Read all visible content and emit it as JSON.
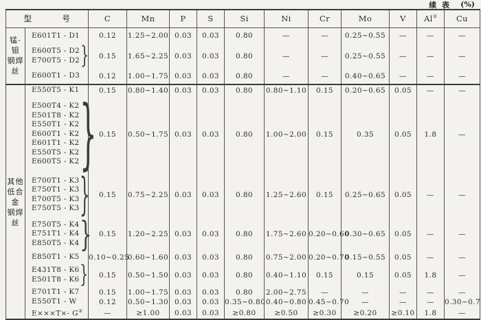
{
  "caption": {
    "continued": "续 表",
    "unit": "(%)"
  },
  "table": {
    "model_header": [
      "型",
      "号"
    ],
    "element_columns": [
      "C",
      "Mn",
      "P",
      "S",
      "Si",
      "Ni",
      "Cr",
      "Mo",
      "V",
      "Al②",
      "Cu"
    ],
    "sections": [
      {
        "group_label_lines": [
          "锰-钼",
          "钢焊丝"
        ],
        "rows": [
          {
            "models": [
              "E601T1 - D1"
            ],
            "brace": false,
            "values": [
              "0.12",
              "1.25~2.00",
              "0.03",
              "0.03",
              "0.80",
              "—",
              "—",
              "0.25~0.55",
              "—",
              "—",
              "—"
            ]
          },
          {
            "models": [
              "E600T5 - D2",
              "E700T5 - D2"
            ],
            "brace": true,
            "values": [
              "0.15",
              "1.65~2.25",
              "0.03",
              "0.03",
              "0.80",
              "—",
              "—",
              "0.25~0.55",
              "—",
              "—",
              "—"
            ]
          },
          {
            "models": [
              "E600T1 - D3"
            ],
            "brace": false,
            "values": [
              "0.12",
              "1.00~1.75",
              "0.03",
              "0.03",
              "0.80",
              "—",
              "—",
              "0.40~0.65",
              "—",
              "—",
              "—"
            ]
          }
        ]
      },
      {
        "group_label_lines": [
          "其他",
          "低合金",
          "钢焊丝"
        ],
        "rows": [
          {
            "models": [
              "E550T5 - K1"
            ],
            "brace": false,
            "values": [
              "0.15",
              "0.80~1.40",
              "0.03",
              "0.03",
              "0.80",
              "0.80~1.10",
              "0.15",
              "0.20~0.65",
              "0.05",
              "—",
              "—"
            ]
          },
          {
            "models": [
              "E500T4 - K2",
              "E501T8 - K2",
              "E550T1 - K2",
              "E600T1 - K2",
              "E601T1 - K2",
              "E550T5 - K2",
              "E600T5 - K2"
            ],
            "brace": true,
            "values": [
              "0.15",
              "0.50~1.75",
              "0.03",
              "0.03",
              "0.80",
              "1.00~2.00",
              "0.15",
              "0.35",
              "0.05",
              "1.8",
              "—"
            ]
          },
          {
            "models": [
              "E700T1 - K3",
              "E750T1 - K3",
              "E700T5 - K3",
              "E750T5 - K3"
            ],
            "brace": true,
            "values": [
              "0.15",
              "0.75~2.25",
              "0.03",
              "0.03",
              "0.80",
              "1.25~2.60",
              "0.15",
              "0.25~0.65",
              "0.05",
              "—",
              "—"
            ]
          },
          {
            "models": [
              "E750T5 - K4",
              "E751T1 - K4",
              "E850T5 - K4"
            ],
            "brace": true,
            "values": [
              "0.15",
              "1.20~2.25",
              "0.03",
              "0.03",
              "0.80",
              "1.75~2.60",
              "0.20~0.60",
              "0.30~0.65",
              "0.05",
              "—",
              "—"
            ]
          },
          {
            "models": [
              "E850T1 - K5"
            ],
            "brace": false,
            "values": [
              "0.10~0.25",
              "0.60~1.60",
              "0.03",
              "0.03",
              "0.80",
              "0.75~2.00",
              "0.20~0.70",
              "0.15~0.55",
              "0.05",
              "—",
              "—"
            ]
          },
          {
            "models": [
              "E431T8 - K6",
              "E501T8 - K6"
            ],
            "brace": true,
            "values": [
              "0.15",
              "0.50~1.50",
              "0.03",
              "0.03",
              "0.80",
              "0.40~1.10",
              "0.15",
              "0.15",
              "0.05",
              "1.8",
              "—"
            ]
          },
          {
            "models": [
              "E701T1 - K7"
            ],
            "brace": false,
            "values": [
              "0.15",
              "1.00~1.75",
              "0.03",
              "0.03",
              "0.80",
              "2.00~2.75",
              "—",
              "—",
              "—",
              "—",
              "—"
            ]
          },
          {
            "models": [
              "E550T1 - W"
            ],
            "brace": false,
            "values": [
              "0.12",
              "0.50~1.30",
              "0.03",
              "0.03",
              "0.35~0.80",
              "0.40~0.80",
              "0.45~0.70",
              "—",
              "—",
              "—",
              "0.30~0.75"
            ]
          },
          {
            "models": [
              "E×××T×- G②"
            ],
            "brace": false,
            "values": [
              "—",
              "≥1.00",
              "0.03",
              "0.03",
              "≥0.80",
              "≥0.50",
              "≥0.30",
              "≥0.20",
              "≥0.10",
              "1.8",
              "—"
            ]
          }
        ]
      }
    ]
  }
}
